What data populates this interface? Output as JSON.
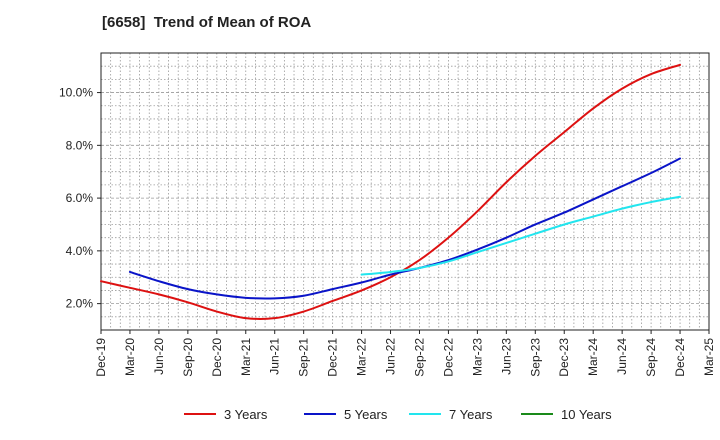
{
  "chart_data": {
    "type": "line",
    "title": "[6658]  Trend of Mean of ROA",
    "xlabel": "",
    "ylabel": "",
    "x_ticks": [
      "Dec-19",
      "Mar-20",
      "Jun-20",
      "Sep-20",
      "Dec-20",
      "Mar-21",
      "Jun-21",
      "Sep-21",
      "Dec-21",
      "Mar-22",
      "Jun-22",
      "Sep-22",
      "Dec-22",
      "Mar-23",
      "Jun-23",
      "Sep-23",
      "Dec-23",
      "Mar-24",
      "Jun-24",
      "Sep-24",
      "Dec-24",
      "Mar-25"
    ],
    "y_ticks": [
      "2.0%",
      "4.0%",
      "6.0%",
      "8.0%",
      "10.0%"
    ],
    "y_tick_values": [
      2,
      4,
      6,
      8,
      10
    ],
    "ylim": [
      1.0,
      11.5
    ],
    "grid": true,
    "legend_position": "bottom",
    "series": [
      {
        "name": "3 Years",
        "color": "#dd1111",
        "values": [
          2.85,
          2.6,
          2.35,
          2.05,
          1.7,
          1.45,
          1.45,
          1.7,
          2.1,
          2.5,
          3.0,
          3.65,
          4.5,
          5.5,
          6.6,
          7.6,
          8.5,
          9.4,
          10.15,
          10.7,
          11.05
        ]
      },
      {
        "name": "5 Years",
        "color": "#0a14c8",
        "values": [
          null,
          3.2,
          2.85,
          2.55,
          2.35,
          2.22,
          2.2,
          2.3,
          2.55,
          2.8,
          3.1,
          3.35,
          3.65,
          4.05,
          4.5,
          5.0,
          5.45,
          5.95,
          6.45,
          6.95,
          7.5
        ]
      },
      {
        "name": "7 Years",
        "color": "#22e5ee",
        "values": [
          null,
          null,
          null,
          null,
          null,
          null,
          null,
          null,
          null,
          3.1,
          3.2,
          3.35,
          3.6,
          3.95,
          4.3,
          4.65,
          5.0,
          5.3,
          5.6,
          5.85,
          6.05
        ]
      },
      {
        "name": "10 Years",
        "color": "#1a8a1a",
        "values": []
      }
    ]
  }
}
